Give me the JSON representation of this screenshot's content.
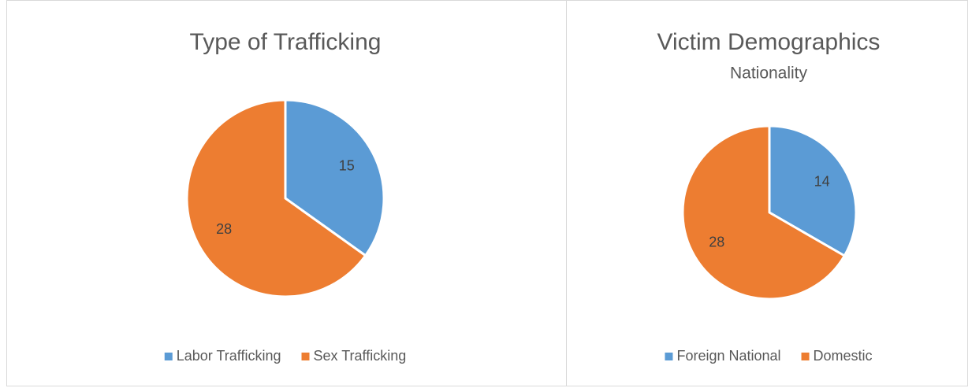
{
  "chart_data": [
    {
      "type": "pie",
      "title": "Type of Trafficking",
      "categories": [
        "Labor Trafficking",
        "Sex Trafficking"
      ],
      "values": [
        15,
        28
      ],
      "colors": [
        "#5b9bd5",
        "#ed7d31"
      ],
      "legend": "bottom"
    },
    {
      "type": "pie",
      "title": "Victim Demographics",
      "subtitle": "Nationality",
      "categories": [
        "Foreign National",
        "Domestic"
      ],
      "values": [
        14,
        28
      ],
      "colors": [
        "#5b9bd5",
        "#ed7d31"
      ],
      "legend": "bottom"
    }
  ]
}
